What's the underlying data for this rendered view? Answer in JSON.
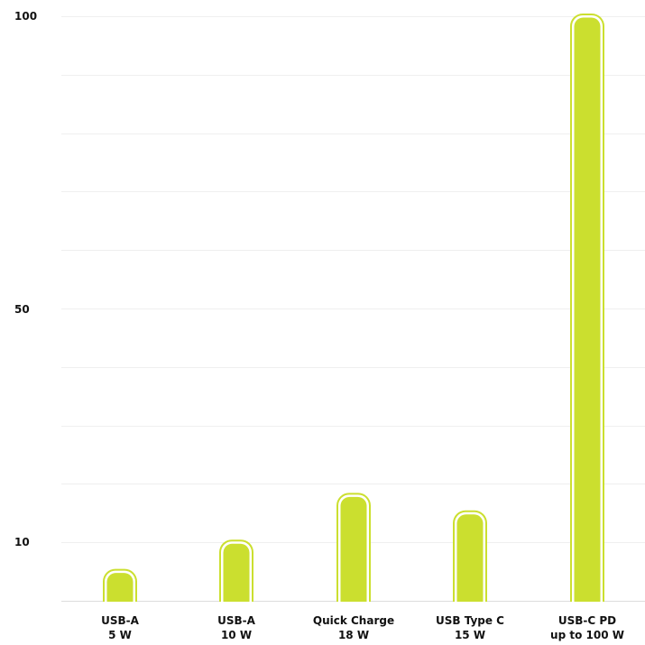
{
  "chart_data": {
    "type": "bar",
    "title": "",
    "xlabel": "",
    "ylabel": "",
    "categories": [
      [
        "USB-A",
        "5 W"
      ],
      [
        "USB-A",
        "10 W"
      ],
      [
        "Quick Charge",
        "18 W"
      ],
      [
        "USB Type C",
        "15 W"
      ],
      [
        "USB-C PD",
        "up to 100 W"
      ]
    ],
    "values": [
      5,
      10,
      18,
      15,
      100
    ],
    "y_ticks": [
      {
        "label": "100",
        "value": 100
      },
      {
        "label": "50",
        "value": 50
      },
      {
        "label": "10",
        "value": 10
      }
    ],
    "ylim": [
      0,
      100
    ],
    "grid": true,
    "bar_color": "#cbdf2f",
    "grid_color": "#efefef"
  }
}
